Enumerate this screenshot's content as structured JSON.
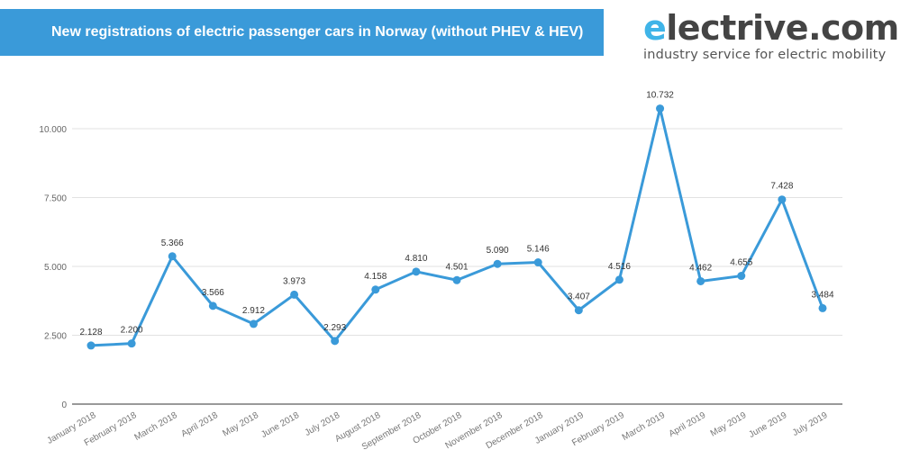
{
  "header": {
    "title": "New registrations of electric passenger cars in Norway (without PHEV & HEV)"
  },
  "logo": {
    "e": "e",
    "rest": "lectrive.com",
    "tagline": "industry service for electric mobility"
  },
  "colors": {
    "banner": "#3a9ad9",
    "line": "#3a9ad9",
    "logo_accent": "#3fb4e8"
  },
  "chart_data": {
    "type": "line",
    "title": "New registrations of electric passenger cars in Norway (without PHEV & HEV)",
    "categories": [
      "January 2018",
      "February 2018",
      "March 2018",
      "April 2018",
      "May 2018",
      "June 2018",
      "July 2018",
      "August 2018",
      "September 2018",
      "October 2018",
      "November 2018",
      "December 2018",
      "January 2019",
      "February 2019",
      "March 2019",
      "April 2019",
      "May 2019",
      "June 2019",
      "July 2019"
    ],
    "values": [
      2128,
      2200,
      5366,
      3566,
      2912,
      3973,
      2293,
      4158,
      4810,
      4501,
      5090,
      5146,
      3407,
      4516,
      10732,
      4462,
      4655,
      7428,
      3484
    ],
    "data_labels": [
      "2.128",
      "2.200",
      "5.366",
      "3.566",
      "2.912",
      "3.973",
      "2.293",
      "4.158",
      "4.810",
      "4.501",
      "5.090",
      "5.146",
      "3.407",
      "4.516",
      "10.732",
      "4.462",
      "4.655",
      "7.428",
      "3.484"
    ],
    "yticks": [
      0,
      2500,
      5000,
      7500,
      10000
    ],
    "ytick_labels": [
      "0",
      "2.500",
      "5.000",
      "7.500",
      "10.000"
    ],
    "ylim": [
      0,
      11000
    ],
    "grid": true,
    "legend": "none"
  }
}
